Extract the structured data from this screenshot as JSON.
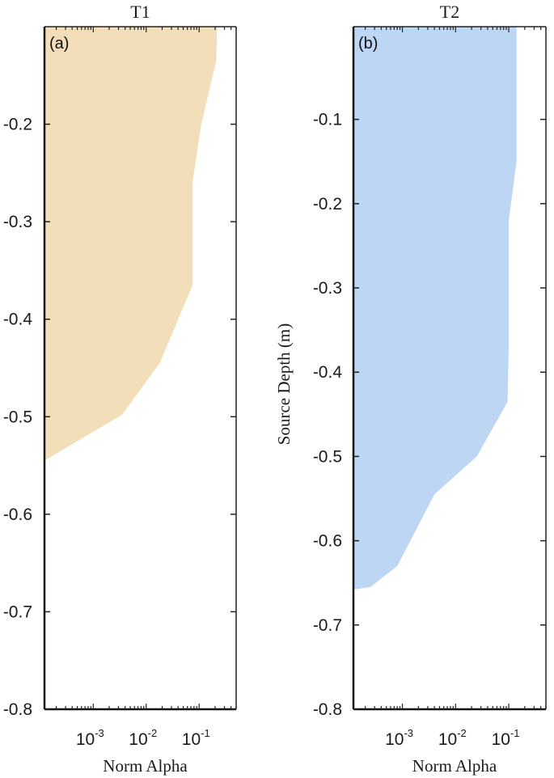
{
  "chart_data": [
    {
      "type": "area",
      "panel_label": "(a)",
      "title": "T1",
      "xlabel": "Norm Alpha",
      "ylabel": "",
      "x_scale": "log",
      "xlim": [
        0.00012,
        0.5
      ],
      "ylim": [
        -0.8,
        -0.1
      ],
      "x_ticks": [
        {
          "base": "10",
          "exp": "-3",
          "value": 0.001
        },
        {
          "base": "10",
          "exp": "-2",
          "value": 0.01
        },
        {
          "base": "10",
          "exp": "-1",
          "value": 0.1
        }
      ],
      "y_ticks": [
        "-0.2",
        "-0.3",
        "-0.4",
        "-0.5",
        "-0.6",
        "-0.7",
        "-0.8"
      ],
      "color": "#f2dfb9",
      "series": [
        {
          "points": [
            {
              "x": 0.22,
              "y": -0.1
            },
            {
              "x": 0.21,
              "y": -0.135
            },
            {
              "x": 0.11,
              "y": -0.2
            },
            {
              "x": 0.075,
              "y": -0.26
            },
            {
              "x": 0.075,
              "y": -0.365
            },
            {
              "x": 0.018,
              "y": -0.445
            },
            {
              "x": 0.0035,
              "y": -0.498
            },
            {
              "x": 0.00012,
              "y": -0.545
            }
          ]
        }
      ]
    },
    {
      "type": "area",
      "panel_label": "(b)",
      "title": "T2",
      "xlabel": "Norm Alpha",
      "ylabel": "Source Depth (m)",
      "x_scale": "log",
      "xlim": [
        0.00012,
        0.5
      ],
      "ylim": [
        -0.8,
        0.01
      ],
      "x_ticks": [
        {
          "base": "10",
          "exp": "-3",
          "value": 0.001
        },
        {
          "base": "10",
          "exp": "-2",
          "value": 0.01
        },
        {
          "base": "10",
          "exp": "-1",
          "value": 0.1
        }
      ],
      "y_ticks": [
        "-0.1",
        "-0.2",
        "-0.3",
        "-0.4",
        "-0.5",
        "-0.6",
        "-0.7",
        "-0.8"
      ],
      "color": "#bcd6f3",
      "series": [
        {
          "points": [
            {
              "x": 0.14,
              "y": 0.01
            },
            {
              "x": 0.14,
              "y": -0.15
            },
            {
              "x": 0.1,
              "y": -0.22
            },
            {
              "x": 0.1,
              "y": -0.37
            },
            {
              "x": 0.095,
              "y": -0.435
            },
            {
              "x": 0.07,
              "y": -0.45
            },
            {
              "x": 0.025,
              "y": -0.5
            },
            {
              "x": 0.004,
              "y": -0.545
            },
            {
              "x": 0.0008,
              "y": -0.63
            },
            {
              "x": 0.00025,
              "y": -0.655
            },
            {
              "x": 0.00012,
              "y": -0.658
            }
          ]
        }
      ]
    }
  ]
}
